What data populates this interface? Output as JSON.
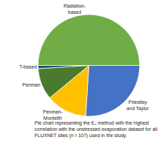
{
  "chart_data": {
    "type": "pie",
    "categories": [
      "Priestley\nand Taylor",
      "Penman-\nMonteith",
      "Penman",
      "T-based",
      "Radiation-\nbased"
    ],
    "values": [
      26,
      13,
      10,
      1,
      50
    ],
    "colors": [
      "#4472C4",
      "#FFC000",
      "#4A7A2E",
      "#1F4E79",
      "#70AD47"
    ],
    "annotations": [
      "Pie chart representing the E₀ method with the highest",
      "correlation with the unstressed evaporation dataset for all",
      "FLUXNET sites (n = 107) used in the study."
    ]
  }
}
